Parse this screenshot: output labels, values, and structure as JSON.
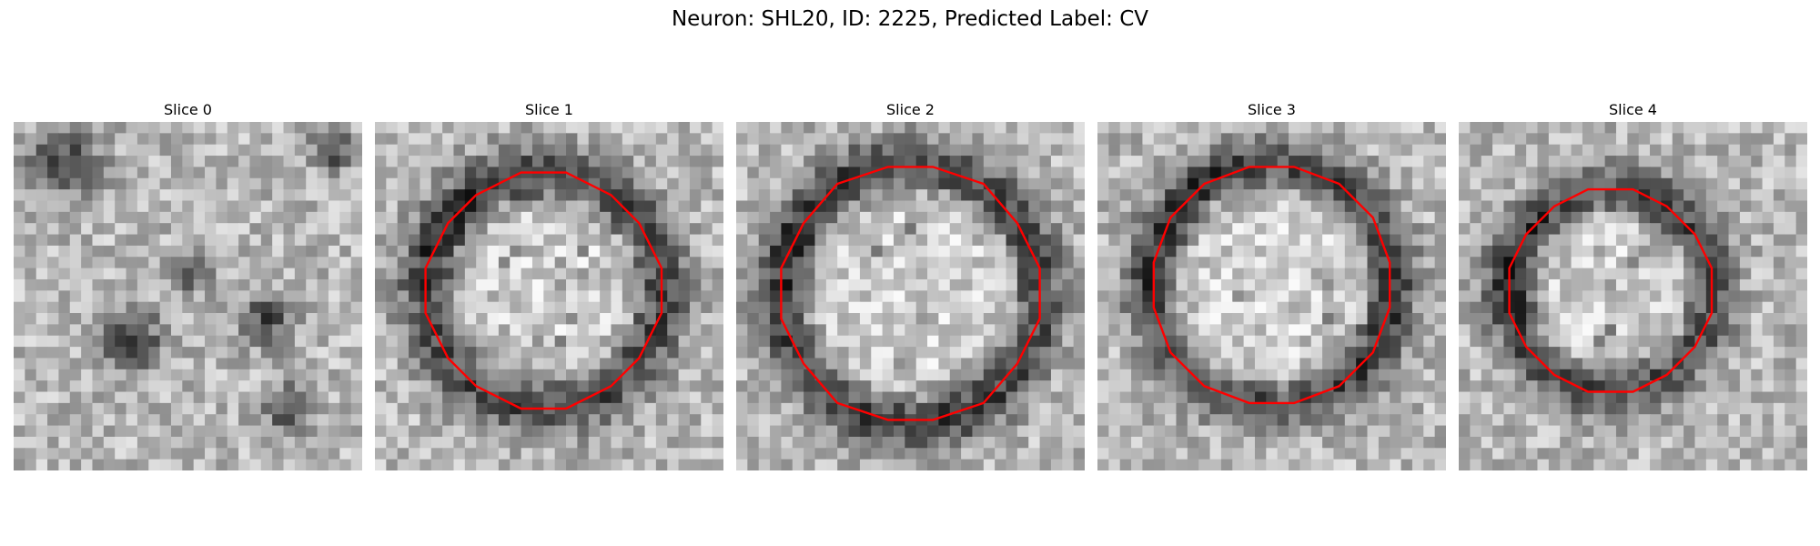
{
  "figure": {
    "title": "Neuron: SHL20, ID: 2225, Predicted Label: CV",
    "contour_color": "#ff0000"
  },
  "panels": [
    {
      "title": "Slice 0",
      "has_contour": false
    },
    {
      "title": "Slice 1",
      "has_contour": true
    },
    {
      "title": "Slice 2",
      "has_contour": true
    },
    {
      "title": "Slice 3",
      "has_contour": true
    },
    {
      "title": "Slice 4",
      "has_contour": true
    }
  ]
}
